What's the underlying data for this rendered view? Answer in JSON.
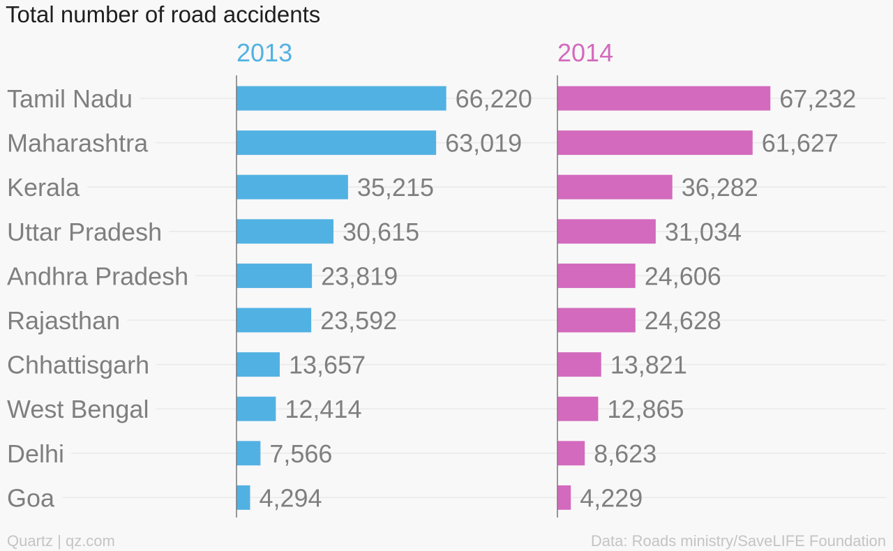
{
  "title": "Total number of road accidents",
  "footer": {
    "source_left": "Quartz | qz.com",
    "source_right": "Data: Roads ministry/SaveLIFE Foundation"
  },
  "colors": {
    "2013": "#52b1e3",
    "2014": "#d36abd"
  },
  "chart_data": {
    "type": "bar",
    "orientation": "horizontal",
    "categories": [
      "Tamil Nadu",
      "Maharashtra",
      "Kerala",
      "Uttar Pradesh",
      "Andhra Pradesh",
      "Rajasthan",
      "Chhattisgarh",
      "West Bengal",
      "Delhi",
      "Goa"
    ],
    "series": [
      {
        "name": "2013",
        "values": [
          66220,
          63019,
          35215,
          30615,
          23819,
          23592,
          13657,
          12414,
          7566,
          4294
        ],
        "labels": [
          "66,220",
          "63,019",
          "35,215",
          "30,615",
          "23,819",
          "23,592",
          "13,657",
          "12,414",
          "7,566",
          "4,294"
        ]
      },
      {
        "name": "2014",
        "values": [
          67232,
          61627,
          36282,
          31034,
          24606,
          24628,
          13821,
          12865,
          8623,
          4229
        ],
        "labels": [
          "67,232",
          "61,627",
          "36,282",
          "31,034",
          "24,606",
          "24,628",
          "13,821",
          "12,865",
          "8,623",
          "4,229"
        ]
      }
    ],
    "xlim": [
      0,
      100000
    ],
    "grid": true
  }
}
